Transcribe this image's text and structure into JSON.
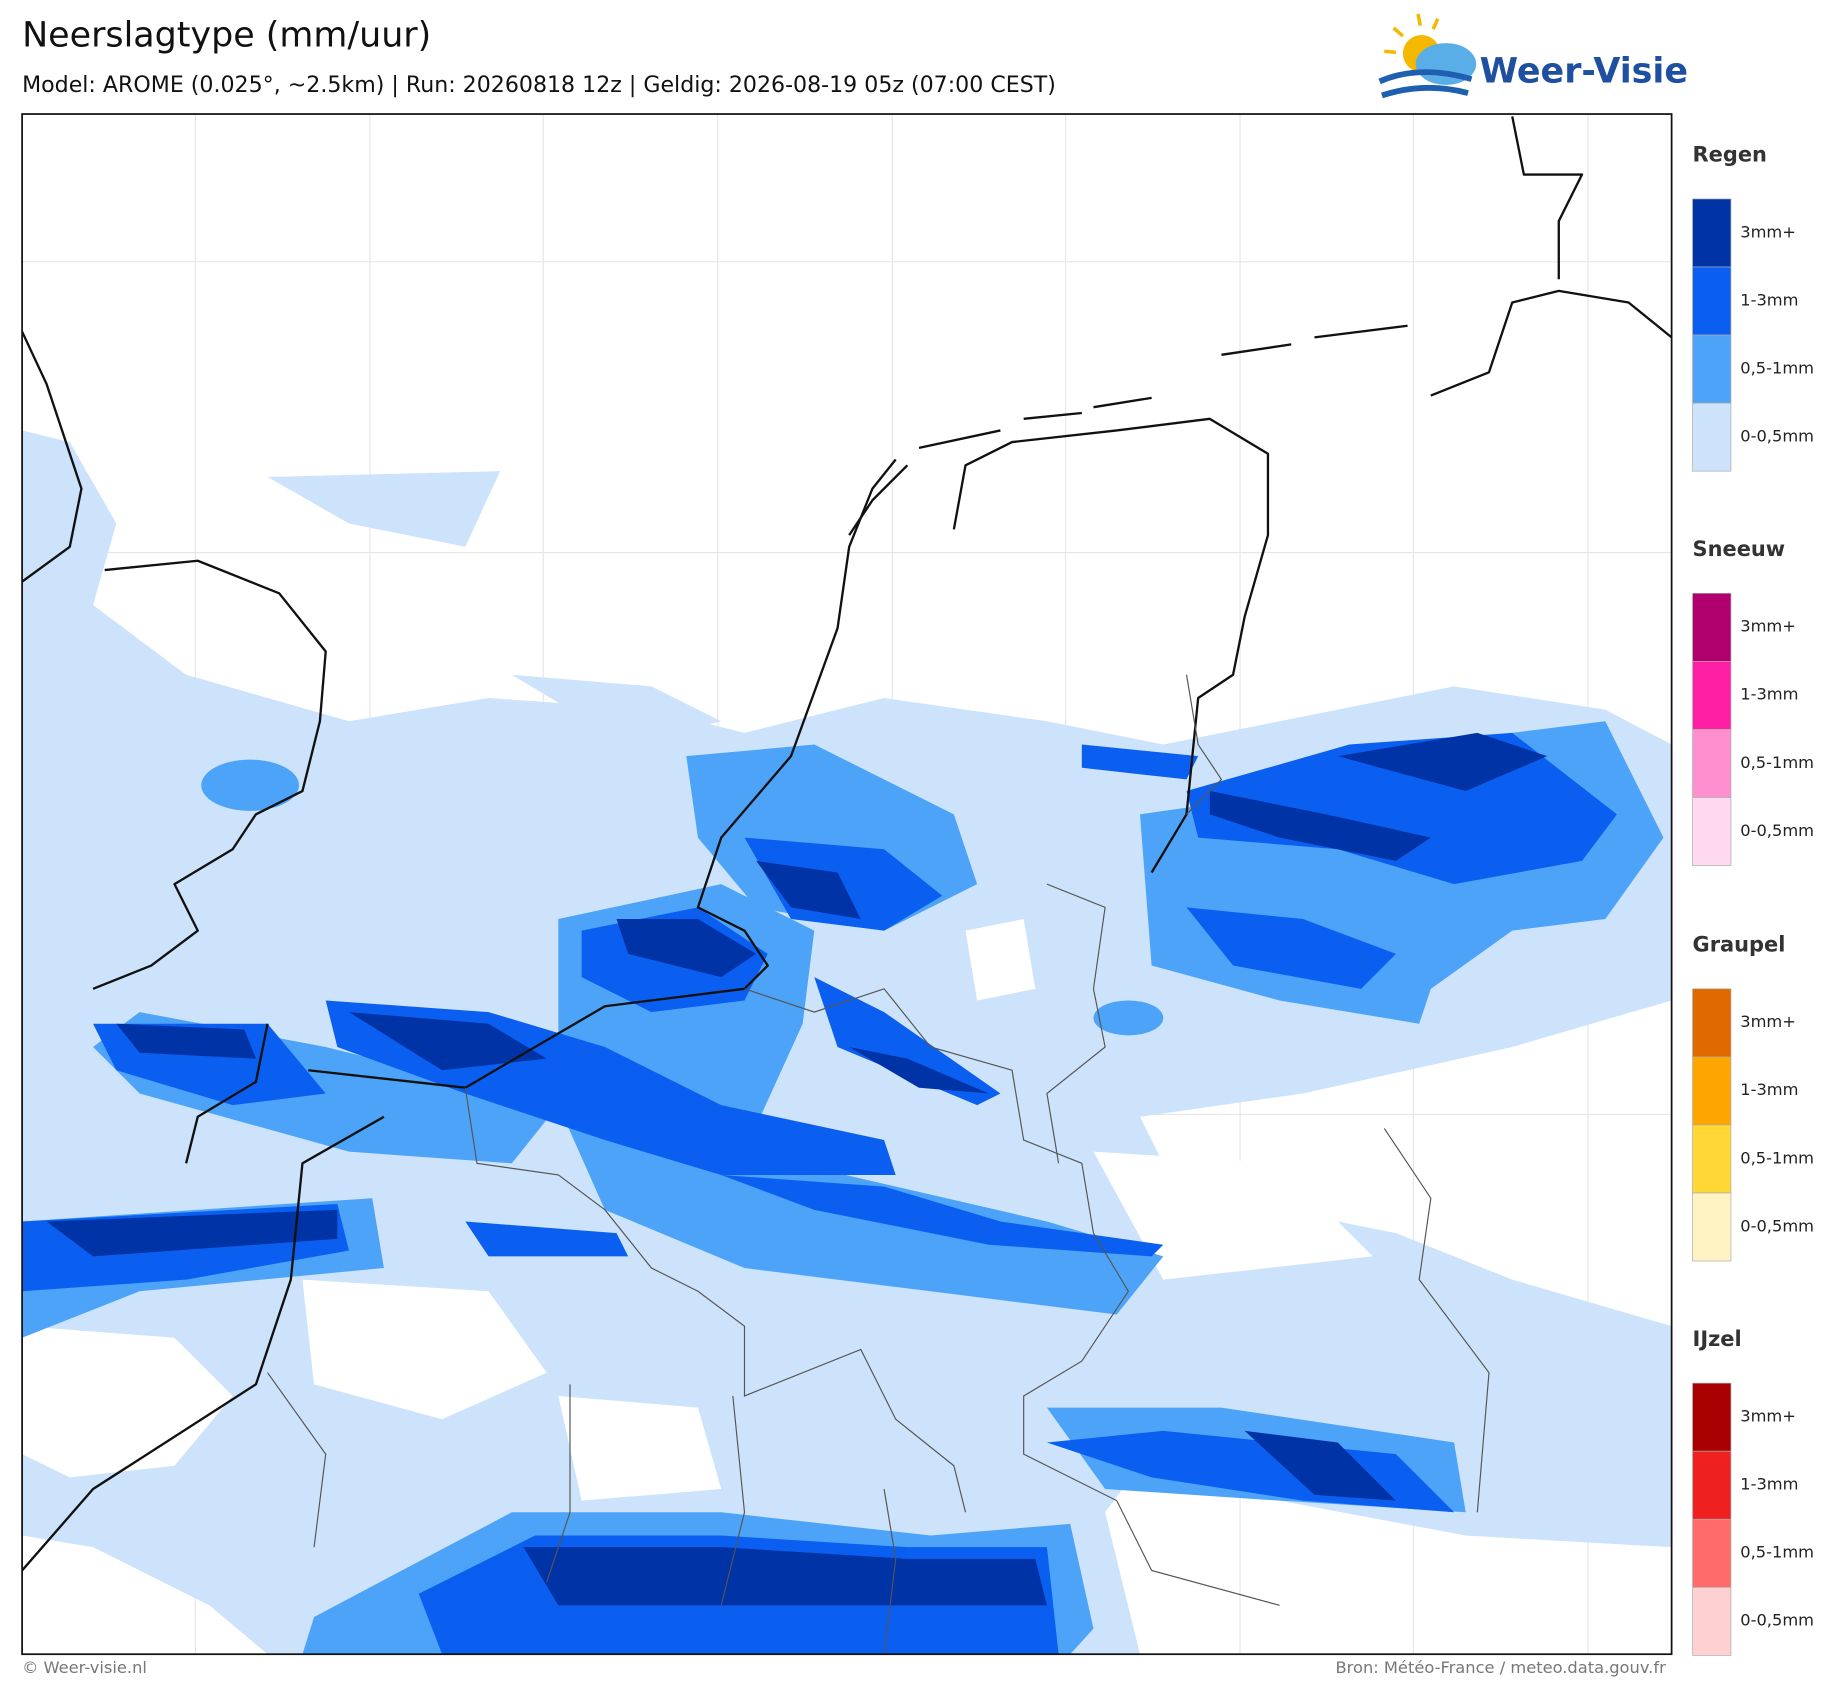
{
  "header": {
    "title": "Neerslagtype (mm/uur)",
    "subtitle": "Model: AROME (0.025°, ~2.5km)  |  Run: 20260818 12z  |  Geldig: 2026-08-19 05z (07:00 CEST)",
    "logo": "Weer-Visie"
  },
  "legend": [
    {
      "title": "Regen",
      "items": [
        "3mm+",
        "1-3mm",
        "0,5-1mm",
        "0-0,5mm"
      ]
    },
    {
      "title": "Sneeuw",
      "items": [
        "3mm+",
        "1-3mm",
        "0,5-1mm",
        "0-0,5mm"
      ]
    },
    {
      "title": "Graupel",
      "items": [
        "3mm+",
        "1-3mm",
        "0,5-1mm",
        "0-0,5mm"
      ]
    },
    {
      "title": "IJzel",
      "items": [
        "3mm+",
        "1-3mm",
        "0,5-1mm",
        "0-0,5mm"
      ]
    }
  ],
  "footer": {
    "left": "© Weer-visie.nl",
    "right": "Bron: Météo-France / meteo.data.gouv.fr"
  }
}
